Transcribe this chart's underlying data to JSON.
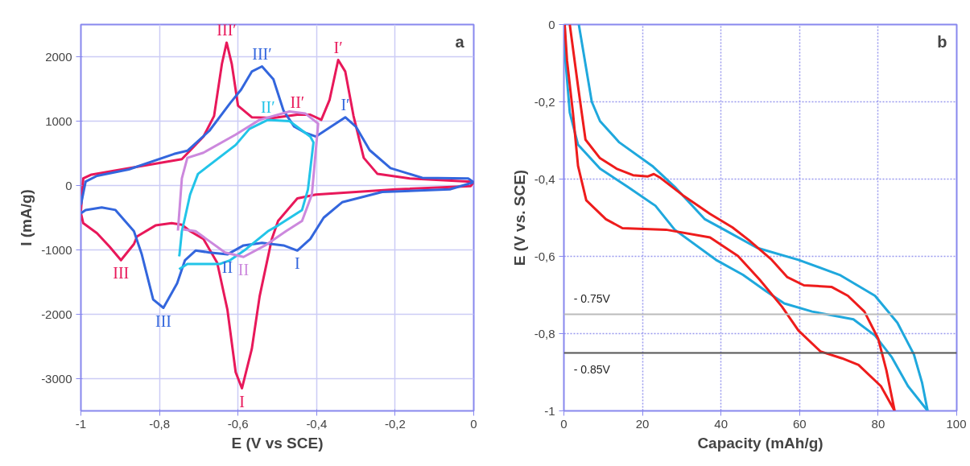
{
  "chart_data": [
    {
      "type": "line",
      "xlabel": "E (V vs SCE)",
      "ylabel": "I (mA/g)",
      "grid": true,
      "xlim": [
        -1,
        0
      ],
      "ylim": [
        -3500,
        2500
      ],
      "xticks": [
        {
          "value": -1,
          "label": "-1"
        },
        {
          "value": -0.8,
          "label": "-0,8"
        },
        {
          "value": -0.6,
          "label": "-0,6"
        },
        {
          "value": -0.4,
          "label": "-0,4"
        },
        {
          "value": -0.2,
          "label": "-0,2"
        },
        {
          "value": 0,
          "label": "0"
        }
      ],
      "yticks": [
        -3000,
        -2000,
        -1000,
        0,
        1000,
        2000
      ],
      "series": [
        {
          "color": "#e8185a",
          "x": [
            -1,
            -0.994,
            -0.973,
            -0.878,
            -0.743,
            -0.688,
            -0.661,
            -0.641,
            -0.629,
            -0.616,
            -0.6,
            -0.565,
            -0.51,
            -0.449,
            -0.416,
            -0.388,
            -0.367,
            -0.345,
            -0.327,
            -0.306,
            -0.28,
            -0.245,
            -0.163,
            -0.008,
            0,
            -0.008,
            -0.198,
            -0.402,
            -0.449,
            -0.498,
            -0.514,
            -0.545,
            -0.565,
            -0.59,
            -0.606,
            -0.627,
            -0.653,
            -0.688,
            -0.722,
            -0.743,
            -0.769,
            -0.81,
            -0.857,
            -0.865,
            -0.898,
            -0.927,
            -0.959,
            -0.994,
            -1
          ],
          "values": [
            -400,
            110,
            170,
            270,
            410,
            760,
            1080,
            1890,
            2220,
            1890,
            1240,
            1060,
            1050,
            1100,
            1100,
            1020,
            1330,
            1950,
            1770,
            1080,
            430,
            180,
            110,
            60,
            50,
            -10,
            -60,
            -140,
            -200,
            -550,
            -830,
            -1720,
            -2540,
            -3150,
            -2900,
            -1930,
            -1200,
            -830,
            -710,
            -610,
            -585,
            -620,
            -790,
            -910,
            -1160,
            -950,
            -740,
            -585,
            -430
          ]
        },
        {
          "color": "#3366dd",
          "x": [
            -1,
            -0.988,
            -0.959,
            -0.878,
            -0.763,
            -0.729,
            -0.673,
            -0.62,
            -0.592,
            -0.565,
            -0.539,
            -0.51,
            -0.484,
            -0.457,
            -0.429,
            -0.402,
            -0.367,
            -0.327,
            -0.3,
            -0.265,
            -0.212,
            -0.131,
            -0.014,
            0,
            -0.061,
            -0.233,
            -0.335,
            -0.382,
            -0.416,
            -0.449,
            -0.484,
            -0.539,
            -0.586,
            -0.627,
            -0.673,
            -0.708,
            -0.735,
            -0.755,
            -0.79,
            -0.816,
            -0.845,
            -0.865,
            -0.912,
            -0.947,
            -0.988,
            -1
          ],
          "values": [
            -300,
            60,
            150,
            250,
            490,
            540,
            850,
            1280,
            1490,
            1770,
            1850,
            1650,
            1160,
            915,
            820,
            760,
            900,
            1060,
            915,
            550,
            270,
            120,
            110,
            50,
            -60,
            -100,
            -260,
            -500,
            -830,
            -1010,
            -930,
            -890,
            -930,
            -1070,
            -1040,
            -1010,
            -1160,
            -1520,
            -1900,
            -1770,
            -1070,
            -710,
            -380,
            -340,
            -380,
            -430
          ]
        },
        {
          "color": "#22c4e8",
          "x": [
            -0.75,
            -0.729,
            -0.647,
            -0.62,
            -0.58,
            -0.524,
            -0.498,
            -0.437,
            -0.422,
            -0.408,
            -0.416,
            -0.469,
            -0.524,
            -0.571,
            -0.606,
            -0.702,
            -0.722,
            -0.735,
            -0.743,
            -0.749,
            -0.75
          ],
          "values": [
            -1300,
            -1220,
            -1220,
            -1160,
            -990,
            -710,
            -620,
            -380,
            -60,
            670,
            760,
            1000,
            1020,
            880,
            630,
            180,
            -140,
            -500,
            -710,
            -1070,
            -1100
          ]
        },
        {
          "color": "#cc88dd",
          "x": [
            -0.753,
            -0.743,
            -0.729,
            -0.688,
            -0.606,
            -0.545,
            -0.469,
            -0.429,
            -0.396,
            -0.406,
            -0.412,
            -0.437,
            -0.478,
            -0.531,
            -0.586,
            -0.633,
            -0.708,
            -0.74
          ],
          "values": [
            -700,
            110,
            430,
            510,
            790,
            1020,
            1150,
            1120,
            960,
            270,
            -140,
            -550,
            -710,
            -930,
            -1110,
            -1040,
            -710,
            -680
          ]
        }
      ],
      "annotations": [
        "a",
        {
          "text": "III′",
          "x": -0.629,
          "y": 2220
        },
        {
          "text": "III′",
          "x": -0.539,
          "y": 1850
        },
        {
          "text": "II′",
          "x": -0.524,
          "y": 1020
        },
        {
          "text": "II′",
          "x": -0.449,
          "y": 1100
        },
        {
          "text": "I′",
          "x": -0.345,
          "y": 1950
        },
        {
          "text": "I′",
          "x": -0.327,
          "y": 1060
        },
        {
          "text": "III",
          "x": -0.898,
          "y": -1160
        },
        {
          "text": "III",
          "x": -0.79,
          "y": -1900
        },
        {
          "text": "II",
          "x": -0.627,
          "y": -1070
        },
        {
          "text": "II",
          "x": -0.586,
          "y": -1110
        },
        {
          "text": "I",
          "x": -0.449,
          "y": -1010
        },
        {
          "text": "I",
          "x": -0.59,
          "y": -3150
        }
      ]
    },
    {
      "type": "line",
      "xlabel": "Capacity (mAh/g)",
      "ylabel": "E (V vs. SCE)",
      "grid": true,
      "xlim": [
        0,
        100
      ],
      "ylim": [
        -1,
        0
      ],
      "xticks": [
        0,
        20,
        40,
        60,
        80,
        100
      ],
      "yticks": [
        {
          "value": -1,
          "label": "-1"
        },
        {
          "value": -0.8,
          "label": "-0,8"
        },
        {
          "value": -0.6,
          "label": "-0,6"
        },
        {
          "value": -0.4,
          "label": "-0,4"
        },
        {
          "value": -0.2,
          "label": "-0,2"
        },
        {
          "value": 0,
          "label": "0"
        }
      ],
      "series": [
        {
          "color": "#1fa8dd",
          "x": [
            3.8,
            7.1,
            9.2,
            14.1,
            22.5,
            28.2,
            35.9,
            40.8,
            49.2,
            59.7,
            70.2,
            79.2,
            84.9,
            89.1,
            91.2,
            92.6,
            87.6,
            83.4,
            79.2,
            73.7,
            63.2,
            56.1,
            51.3,
            45.6,
            38.7,
            28.2,
            23.3,
            16.2,
            9.2,
            3.6,
            1.5,
            0.4,
            0.2
          ],
          "values": [
            0,
            -0.2,
            -0.25,
            -0.305,
            -0.366,
            -0.42,
            -0.504,
            -0.531,
            -0.578,
            -0.609,
            -0.648,
            -0.702,
            -0.772,
            -0.854,
            -0.928,
            -1.0,
            -0.936,
            -0.86,
            -0.805,
            -0.763,
            -0.743,
            -0.722,
            -0.689,
            -0.648,
            -0.609,
            -0.531,
            -0.469,
            -0.42,
            -0.373,
            -0.311,
            -0.228,
            -0.093,
            0
          ]
        },
        {
          "color": "#ee1c1c",
          "x": [
            1.5,
            3.6,
            5.5,
            9.2,
            13.4,
            17.6,
            21.4,
            22.9,
            24.6,
            30.3,
            37.2,
            42.9,
            47.1,
            52.7,
            56.9,
            61.1,
            68.1,
            72.3,
            76.5,
            80,
            82.1,
            84.2,
            80.7,
            75,
            70.8,
            65.3,
            59.7,
            55.5,
            49.8,
            44.3,
            37.2,
            26,
            14.9,
            10.7,
            5.7,
            3.6,
            2.3,
            0.8,
            0.2
          ],
          "values": [
            0,
            -0.16,
            -0.298,
            -0.346,
            -0.373,
            -0.39,
            -0.393,
            -0.387,
            -0.397,
            -0.442,
            -0.49,
            -0.525,
            -0.558,
            -0.607,
            -0.654,
            -0.675,
            -0.679,
            -0.702,
            -0.743,
            -0.813,
            -0.895,
            -1,
            -0.936,
            -0.881,
            -0.864,
            -0.846,
            -0.792,
            -0.73,
            -0.66,
            -0.599,
            -0.551,
            -0.531,
            -0.527,
            -0.504,
            -0.455,
            -0.366,
            -0.228,
            -0.093,
            0
          ]
        }
      ],
      "ref_lines": [
        {
          "axis": "y",
          "value": -0.75,
          "label": "- 0.75V",
          "color": "#bbbbbb"
        },
        {
          "axis": "y",
          "value": -0.85,
          "label": "- 0.85V",
          "color": "#555555"
        }
      ],
      "annotations": [
        "b"
      ]
    }
  ]
}
